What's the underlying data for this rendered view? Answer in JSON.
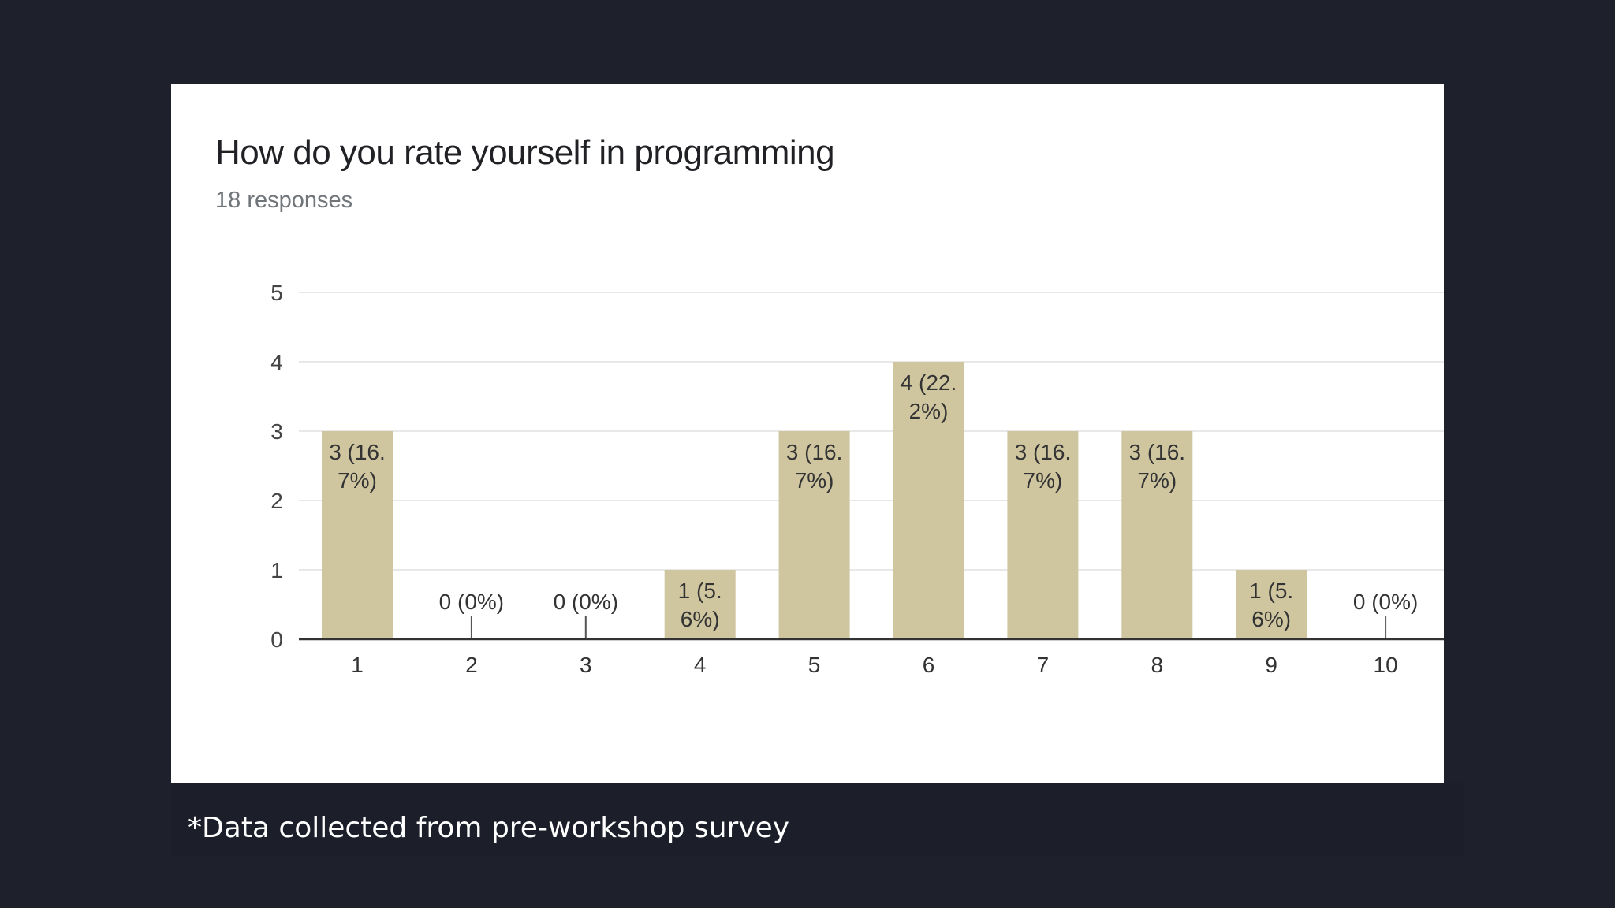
{
  "chart_data": {
    "type": "bar",
    "title": "How do you rate yourself in programming",
    "subtitle": "18 responses",
    "categories": [
      "1",
      "2",
      "3",
      "4",
      "5",
      "6",
      "7",
      "8",
      "9",
      "10"
    ],
    "values": [
      3,
      0,
      0,
      1,
      3,
      4,
      3,
      3,
      1,
      0
    ],
    "data_labels": [
      [
        "3 (16.",
        "7%)"
      ],
      [
        "0 (0%)"
      ],
      [
        "0 (0%)"
      ],
      [
        "1 (5.",
        "6%)"
      ],
      [
        "3 (16.",
        "7%)"
      ],
      [
        "4 (22.",
        "2%)"
      ],
      [
        "3 (16.",
        "7%)"
      ],
      [
        "3 (16.",
        "7%)"
      ],
      [
        "1 (5.",
        "6%)"
      ],
      [
        "0 (0%)"
      ]
    ],
    "y_ticks": [
      0,
      1,
      2,
      3,
      4,
      5
    ],
    "ylim": [
      0,
      5
    ],
    "grid": true,
    "bar_color": "#cfc6a0",
    "xlabel": "",
    "ylabel": ""
  },
  "caption": "*Data collected from pre-workshop survey"
}
